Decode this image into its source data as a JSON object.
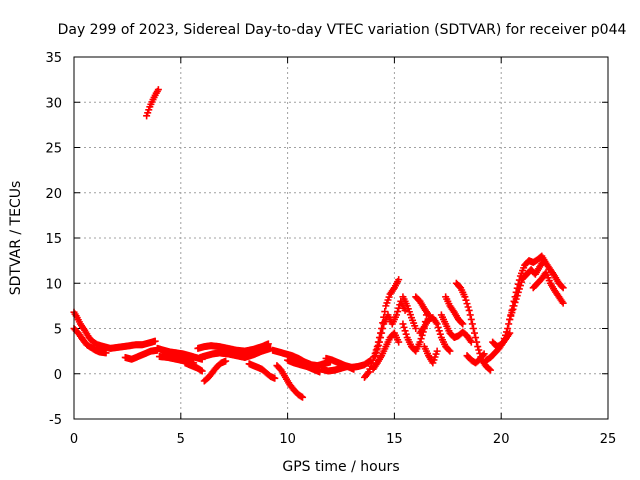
{
  "chart_data": {
    "type": "scatter",
    "title": "Day 299 of 2023, Sidereal Day-to-day VTEC variation (SDTVAR) for receiver p044",
    "xlabel": "GPS time / hours",
    "ylabel": "SDTVAR / TECUs",
    "xlim": [
      0,
      25
    ],
    "ylim": [
      -5,
      35
    ],
    "xticks": [
      0,
      5,
      10,
      15,
      20,
      25
    ],
    "yticks": [
      -5,
      0,
      5,
      10,
      15,
      20,
      25,
      30,
      35
    ],
    "grid": true,
    "marker": "+",
    "series": [
      {
        "name": "SDTVAR",
        "color": "#ff0000",
        "segments": [
          [
            [
              0.0,
              6.8
            ],
            [
              0.15,
              6.2
            ],
            [
              0.3,
              5.5
            ],
            [
              0.5,
              4.8
            ],
            [
              0.7,
              4.0
            ],
            [
              0.9,
              3.5
            ],
            [
              1.1,
              3.2
            ],
            [
              1.4,
              3.0
            ],
            [
              1.7,
              2.8
            ],
            [
              2.0,
              2.9
            ],
            [
              2.3,
              3.0
            ],
            [
              2.6,
              3.1
            ],
            [
              2.9,
              3.2
            ],
            [
              3.2,
              3.2
            ],
            [
              3.5,
              3.4
            ],
            [
              3.8,
              3.6
            ]
          ],
          [
            [
              0.0,
              5.0
            ],
            [
              0.2,
              4.5
            ],
            [
              0.4,
              3.8
            ],
            [
              0.6,
              3.2
            ],
            [
              0.8,
              2.9
            ],
            [
              1.0,
              2.6
            ],
            [
              1.2,
              2.4
            ],
            [
              1.5,
              2.3
            ]
          ],
          [
            [
              2.4,
              1.8
            ],
            [
              2.7,
              1.6
            ],
            [
              3.0,
              1.9
            ],
            [
              3.3,
              2.2
            ],
            [
              3.6,
              2.5
            ],
            [
              3.9,
              2.6
            ]
          ],
          [
            [
              3.4,
              28.5
            ],
            [
              3.55,
              29.5
            ],
            [
              3.7,
              30.3
            ],
            [
              3.85,
              31.0
            ],
            [
              3.95,
              31.4
            ]
          ],
          [
            [
              3.9,
              2.8
            ],
            [
              4.2,
              2.6
            ],
            [
              4.5,
              2.4
            ],
            [
              4.8,
              2.3
            ],
            [
              5.1,
              2.2
            ],
            [
              5.4,
              2.0
            ],
            [
              5.7,
              1.8
            ],
            [
              6.0,
              1.6
            ]
          ],
          [
            [
              4.0,
              1.9
            ],
            [
              4.4,
              1.8
            ],
            [
              4.8,
              1.6
            ],
            [
              5.2,
              1.4
            ],
            [
              5.6,
              1.2
            ]
          ],
          [
            [
              5.8,
              2.8
            ],
            [
              6.1,
              3.0
            ],
            [
              6.4,
              3.1
            ],
            [
              6.8,
              3.0
            ],
            [
              7.2,
              2.8
            ],
            [
              7.6,
              2.6
            ],
            [
              8.0,
              2.5
            ],
            [
              8.4,
              2.7
            ],
            [
              8.8,
              3.0
            ],
            [
              9.1,
              3.3
            ]
          ],
          [
            [
              5.9,
              1.8
            ],
            [
              6.2,
              2.0
            ],
            [
              6.5,
              2.2
            ],
            [
              6.8,
              2.3
            ],
            [
              7.2,
              2.2
            ],
            [
              7.6,
              2.0
            ],
            [
              8.0,
              1.8
            ],
            [
              8.4,
              2.1
            ],
            [
              8.8,
              2.5
            ],
            [
              9.2,
              2.8
            ]
          ],
          [
            [
              6.1,
              -0.8
            ],
            [
              6.3,
              -0.4
            ],
            [
              6.5,
              0.2
            ],
            [
              6.7,
              0.8
            ],
            [
              6.9,
              1.2
            ],
            [
              7.1,
              1.4
            ]
          ],
          [
            [
              5.2,
              1.2
            ],
            [
              5.5,
              0.9
            ],
            [
              5.8,
              0.6
            ],
            [
              6.0,
              0.3
            ]
          ],
          [
            [
              8.2,
              1.1
            ],
            [
              8.5,
              0.8
            ],
            [
              8.8,
              0.5
            ],
            [
              9.0,
              0.1
            ],
            [
              9.2,
              -0.3
            ],
            [
              9.4,
              -0.5
            ]
          ],
          [
            [
              9.3,
              2.6
            ],
            [
              9.6,
              2.4
            ],
            [
              9.9,
              2.2
            ],
            [
              10.2,
              2.0
            ],
            [
              10.5,
              1.7
            ],
            [
              10.8,
              1.3
            ],
            [
              11.1,
              1.0
            ],
            [
              11.4,
              0.9
            ],
            [
              11.7,
              1.1
            ],
            [
              12.0,
              1.3
            ]
          ],
          [
            [
              9.5,
              0.9
            ],
            [
              9.7,
              0.4
            ],
            [
              9.9,
              -0.4
            ],
            [
              10.1,
              -1.2
            ],
            [
              10.3,
              -1.8
            ],
            [
              10.5,
              -2.3
            ],
            [
              10.7,
              -2.6
            ]
          ],
          [
            [
              10.0,
              1.5
            ],
            [
              10.3,
              1.2
            ],
            [
              10.6,
              1.0
            ],
            [
              10.9,
              0.8
            ],
            [
              11.2,
              0.5
            ],
            [
              11.5,
              0.2
            ]
          ],
          [
            [
              11.8,
              1.7
            ],
            [
              12.1,
              1.5
            ],
            [
              12.4,
              1.2
            ],
            [
              12.7,
              0.9
            ],
            [
              13.0,
              0.7
            ],
            [
              13.3,
              0.8
            ],
            [
              13.6,
              1.0
            ],
            [
              13.9,
              1.5
            ]
          ],
          [
            [
              11.6,
              0.5
            ],
            [
              11.9,
              0.3
            ],
            [
              12.2,
              0.4
            ],
            [
              12.5,
              0.6
            ],
            [
              12.8,
              0.8
            ],
            [
              13.1,
              0.5
            ]
          ],
          [
            [
              13.6,
              -0.4
            ],
            [
              13.8,
              0.2
            ],
            [
              14.0,
              1.5
            ],
            [
              14.2,
              3.0
            ],
            [
              14.4,
              5.0
            ],
            [
              14.6,
              7.5
            ],
            [
              14.8,
              8.8
            ],
            [
              15.0,
              9.5
            ],
            [
              15.2,
              10.4
            ]
          ],
          [
            [
              14.1,
              2.0
            ],
            [
              14.3,
              3.5
            ],
            [
              14.5,
              5.5
            ],
            [
              14.7,
              6.5
            ],
            [
              14.9,
              5.5
            ],
            [
              15.1,
              6.5
            ],
            [
              15.3,
              8.0
            ],
            [
              15.5,
              7.0
            ]
          ],
          [
            [
              14.0,
              0.5
            ],
            [
              14.2,
              1.2
            ],
            [
              14.4,
              2.0
            ],
            [
              14.6,
              3.0
            ],
            [
              14.8,
              4.0
            ],
            [
              15.0,
              4.5
            ],
            [
              15.2,
              3.5
            ]
          ],
          [
            [
              15.4,
              5.5
            ],
            [
              15.6,
              4.0
            ],
            [
              15.8,
              3.0
            ],
            [
              16.0,
              2.5
            ],
            [
              16.2,
              3.5
            ],
            [
              16.4,
              5.0
            ],
            [
              16.5,
              6.5
            ]
          ],
          [
            [
              15.4,
              8.5
            ],
            [
              15.6,
              7.5
            ],
            [
              15.8,
              6.2
            ],
            [
              16.0,
              5.0
            ]
          ],
          [
            [
              16.2,
              4.5
            ],
            [
              16.4,
              5.2
            ],
            [
              16.6,
              6.0
            ],
            [
              16.8,
              6.2
            ],
            [
              17.0,
              5.5
            ],
            [
              17.2,
              4.0
            ],
            [
              17.4,
              3.0
            ],
            [
              17.6,
              2.5
            ]
          ],
          [
            [
              16.0,
              8.5
            ],
            [
              16.2,
              8.0
            ],
            [
              16.4,
              7.2
            ],
            [
              16.6,
              6.5
            ]
          ],
          [
            [
              16.4,
              3.0
            ],
            [
              16.6,
              2.0
            ],
            [
              16.8,
              1.2
            ],
            [
              17.0,
              2.5
            ]
          ],
          [
            [
              17.2,
              6.5
            ],
            [
              17.4,
              5.5
            ],
            [
              17.6,
              4.5
            ],
            [
              17.8,
              4.0
            ],
            [
              18.0,
              4.2
            ],
            [
              18.2,
              4.6
            ],
            [
              18.4,
              4.2
            ],
            [
              18.6,
              3.5
            ]
          ],
          [
            [
              17.4,
              8.5
            ],
            [
              17.6,
              7.5
            ],
            [
              17.8,
              6.8
            ],
            [
              18.0,
              6.0
            ],
            [
              18.2,
              5.5
            ]
          ],
          [
            [
              17.9,
              10.0
            ],
            [
              18.1,
              9.5
            ],
            [
              18.3,
              8.5
            ],
            [
              18.5,
              7.0
            ],
            [
              18.7,
              5.0
            ],
            [
              18.9,
              3.0
            ],
            [
              19.1,
              1.5
            ],
            [
              19.3,
              0.8
            ],
            [
              19.5,
              0.4
            ]
          ],
          [
            [
              18.4,
              2.0
            ],
            [
              18.6,
              1.5
            ],
            [
              18.8,
              1.2
            ],
            [
              19.0,
              1.6
            ],
            [
              19.2,
              2.2
            ]
          ],
          [
            [
              19.3,
              1.5
            ],
            [
              19.5,
              1.8
            ],
            [
              19.7,
              2.3
            ],
            [
              19.9,
              2.8
            ],
            [
              20.1,
              3.5
            ],
            [
              20.3,
              5.0
            ],
            [
              20.5,
              7.0
            ],
            [
              20.7,
              9.0
            ],
            [
              20.9,
              10.8
            ],
            [
              21.1,
              12.0
            ],
            [
              21.3,
              12.5
            ],
            [
              21.5,
              12.3
            ],
            [
              21.7,
              12.6
            ],
            [
              21.9,
              13.0
            ],
            [
              22.1,
              12.2
            ],
            [
              22.3,
              11.5
            ],
            [
              22.5,
              10.8
            ],
            [
              22.7,
              10.0
            ],
            [
              22.9,
              9.5
            ]
          ],
          [
            [
              19.6,
              3.5
            ],
            [
              19.8,
              3.0
            ],
            [
              20.0,
              3.2
            ],
            [
              20.2,
              3.8
            ],
            [
              20.4,
              4.5
            ]
          ],
          [
            [
              20.4,
              6.0
            ],
            [
              20.6,
              7.5
            ],
            [
              20.8,
              9.0
            ],
            [
              21.0,
              10.5
            ],
            [
              21.2,
              11.0
            ],
            [
              21.4,
              11.5
            ],
            [
              21.6,
              11.0
            ],
            [
              21.8,
              11.8
            ],
            [
              22.0,
              12.5
            ]
          ],
          [
            [
              21.5,
              9.5
            ],
            [
              21.7,
              10.0
            ],
            [
              21.9,
              10.5
            ],
            [
              22.1,
              11.2
            ],
            [
              22.3,
              10.0
            ],
            [
              22.5,
              9.2
            ],
            [
              22.7,
              8.5
            ],
            [
              22.9,
              7.8
            ]
          ]
        ]
      }
    ]
  }
}
